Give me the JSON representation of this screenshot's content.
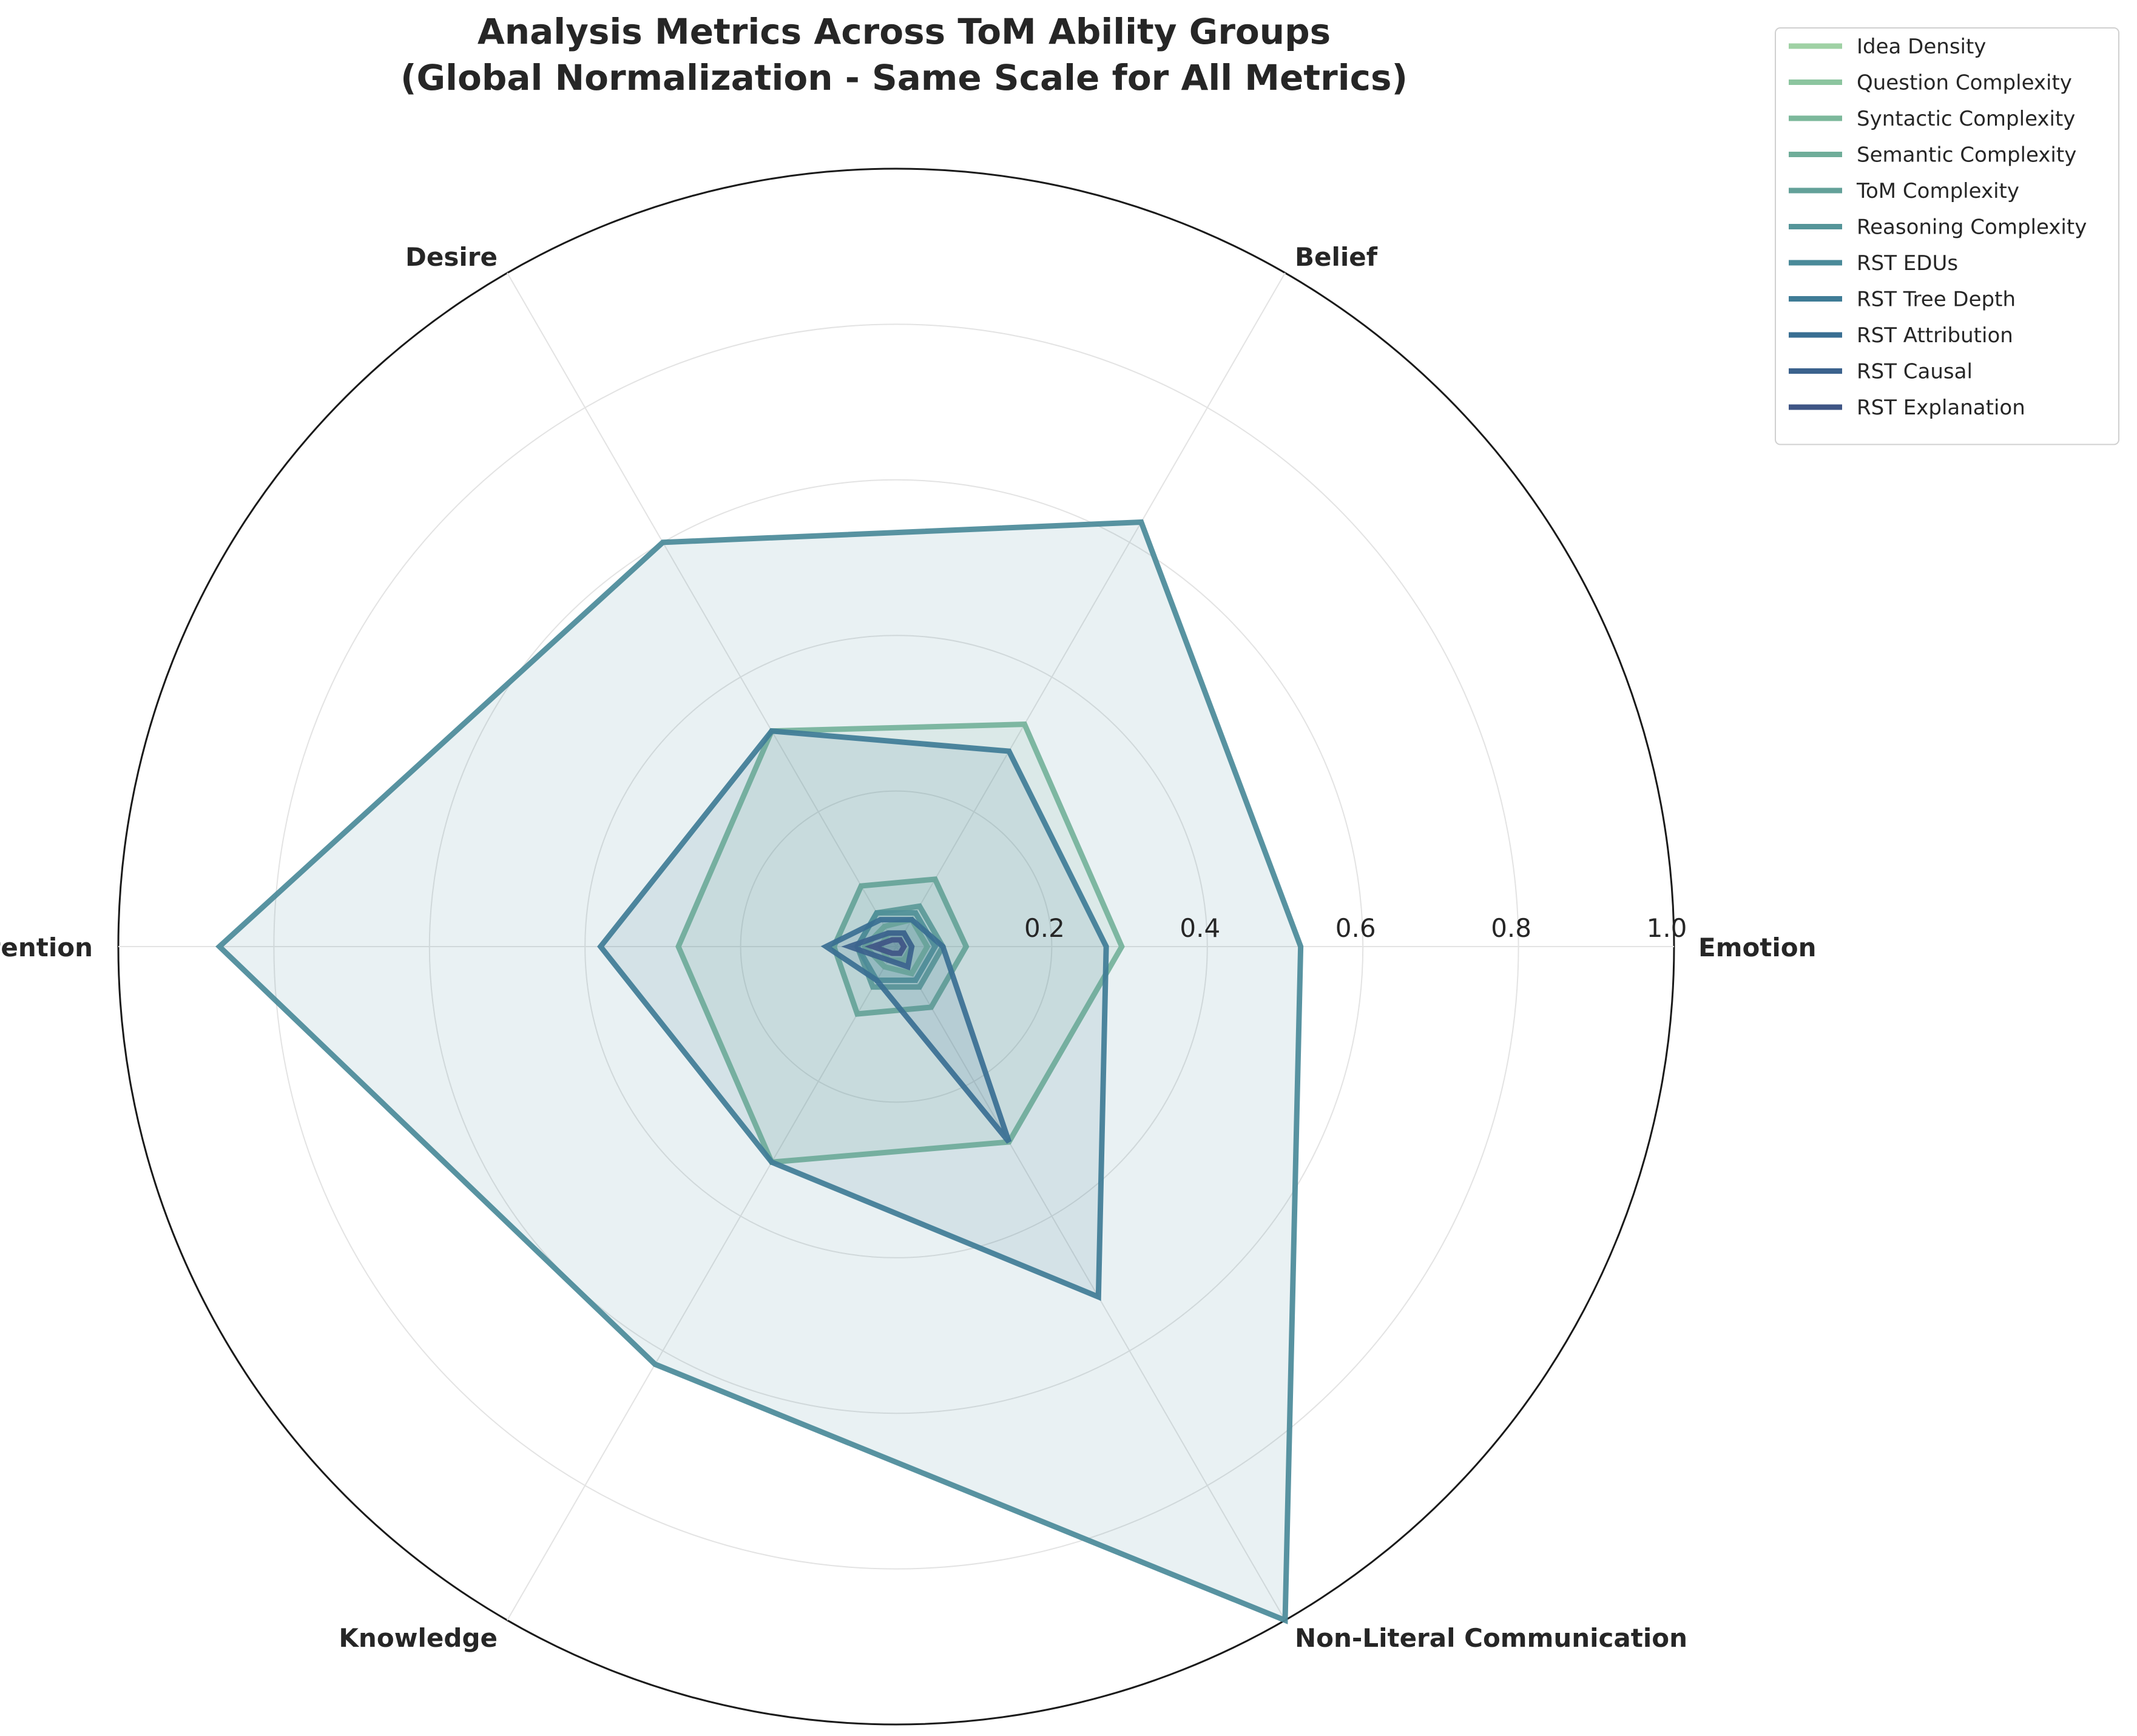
{
  "chart_data": {
    "type": "radar",
    "title": "Analysis Metrics Across ToM Ability Groups",
    "subtitle": "(Global Normalization - Same Scale for All Metrics)",
    "categories": [
      "Emotion",
      "Belief",
      "Desire",
      "Intention",
      "Knowledge",
      "Non-Literal Communication"
    ],
    "rlim": [
      0,
      1.0
    ],
    "rticks": [
      "0.2",
      "0.4",
      "0.6",
      "0.8",
      "1.0"
    ],
    "rtick_values": [
      0.2,
      0.4,
      0.6,
      0.8,
      1.0
    ],
    "grid": true,
    "legend_position": "upper-right-outside",
    "series": [
      {
        "name": "Idea Density",
        "color": "#9fd1a4",
        "values": [
          0.02,
          0.02,
          0.02,
          0.02,
          0.02,
          0.02
        ]
      },
      {
        "name": "Question Complexity",
        "color": "#8cc59f",
        "values": [
          0.04,
          0.04,
          0.03,
          0.04,
          0.03,
          0.04
        ]
      },
      {
        "name": "Syntactic Complexity",
        "color": "#7cb89b",
        "values": [
          0.29,
          0.33,
          0.32,
          0.28,
          0.32,
          0.29
        ]
      },
      {
        "name": "Semantic Complexity",
        "color": "#6fad99",
        "values": [
          0.09,
          0.1,
          0.09,
          0.08,
          0.1,
          0.09
        ]
      },
      {
        "name": "ToM Complexity",
        "color": "#63a199",
        "values": [
          0.06,
          0.06,
          0.05,
          0.05,
          0.06,
          0.06
        ]
      },
      {
        "name": "Reasoning Complexity",
        "color": "#559599",
        "values": [
          0.05,
          0.05,
          0.05,
          0.05,
          0.05,
          0.05
        ]
      },
      {
        "name": "RST EDUs",
        "color": "#4a8a99",
        "values": [
          0.52,
          0.63,
          0.6,
          0.87,
          0.62,
          1.0
        ]
      },
      {
        "name": "RST Tree Depth",
        "color": "#3f7c96",
        "values": [
          0.27,
          0.29,
          0.32,
          0.38,
          0.32,
          0.52
        ]
      },
      {
        "name": "RST Attribution",
        "color": "#3a6f93",
        "values": [
          0.06,
          0.04,
          0.04,
          0.09,
          0.05,
          0.29
        ]
      },
      {
        "name": "RST Causal",
        "color": "#3b628d",
        "values": [
          0.02,
          0.02,
          0.02,
          0.06,
          0.02,
          0.03
        ]
      },
      {
        "name": "RST Explanation",
        "color": "#3f5585",
        "values": [
          0.01,
          0.01,
          0.01,
          0.03,
          0.01,
          0.01
        ]
      }
    ]
  }
}
